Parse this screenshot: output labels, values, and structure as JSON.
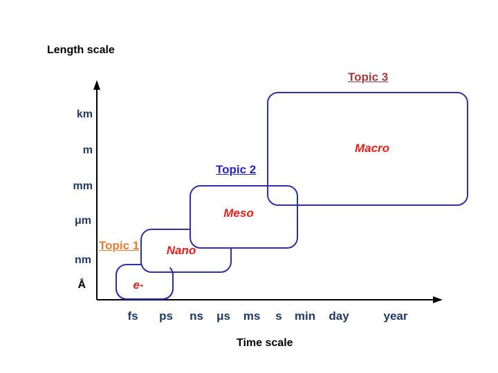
{
  "titles": {
    "y_axis": "Length scale",
    "x_axis": "Time scale"
  },
  "y_ticks": [
    "km",
    "m",
    "mm",
    "μm",
    "nm",
    "Å"
  ],
  "x_ticks": [
    "fs",
    "ps",
    "ns",
    "μs",
    "ms",
    "s",
    "min",
    "day",
    "year"
  ],
  "regions": [
    {
      "label": "e-"
    },
    {
      "label": "Nano"
    },
    {
      "label": "Meso"
    },
    {
      "label": "Macro"
    }
  ],
  "topics": [
    {
      "label": "Topic 1",
      "color": "#e47c34"
    },
    {
      "label": "Topic 2",
      "color": "#2323c8"
    },
    {
      "label": "Topic 3",
      "color": "#a33a3a"
    }
  ],
  "colors": {
    "axis": "#000000",
    "tick_text": "#1f3864",
    "box_border": "#2e2ea6",
    "region_text": "#e0201b"
  }
}
